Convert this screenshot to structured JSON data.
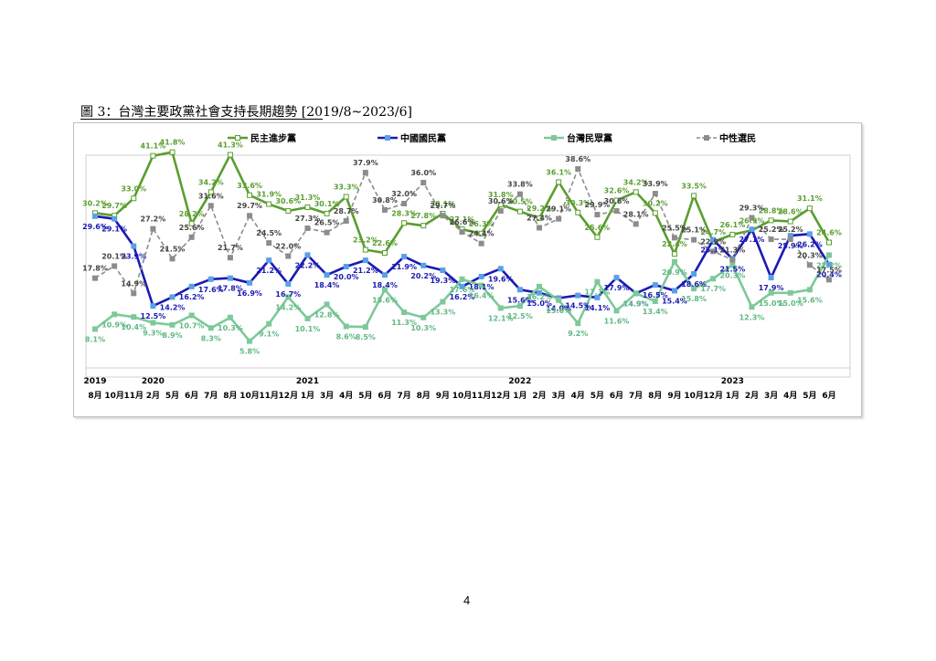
{
  "caption": "圖 3：台灣主要政黨社會支持長期趨勢 [2019/8~2023/6]",
  "page_number": "4",
  "chart_data": {
    "type": "line",
    "title": "",
    "xlabel": "",
    "ylabel": "",
    "ylim": [
      0,
      45
    ],
    "grid": false,
    "legend_placement": "top",
    "x": [
      "8月",
      "10月",
      "11月",
      "2月",
      "5月",
      "6月",
      "7月",
      "8月",
      "10月",
      "11月",
      "12月",
      "1月",
      "3月",
      "4月",
      "5月",
      "6月",
      "7月",
      "8月",
      "9月",
      "10月",
      "11月",
      "12月",
      "1月",
      "2月",
      "3月",
      "4月",
      "5月",
      "6月",
      "7月",
      "8月",
      "9月",
      "10月",
      "12月",
      "1月",
      "2月",
      "3月",
      "4月",
      "5月",
      "6月"
    ],
    "year_labels": [
      {
        "label": "2019",
        "index": 0
      },
      {
        "label": "2020",
        "index": 3
      },
      {
        "label": "2021",
        "index": 11
      },
      {
        "label": "2022",
        "index": 22
      },
      {
        "label": "2023",
        "index": 33
      }
    ],
    "series": [
      {
        "name": "民主進步黨",
        "color": "#5a9e2f",
        "marker": "square-hollow",
        "dash": "solid",
        "values": [
          30.2,
          29.7,
          33.0,
          41.1,
          41.8,
          28.2,
          34.2,
          41.3,
          33.6,
          31.9,
          30.6,
          31.3,
          30.1,
          33.3,
          23.2,
          22.6,
          28.3,
          27.8,
          30.1,
          27.1,
          26.3,
          31.8,
          30.5,
          29.2,
          36.1,
          30.3,
          25.6,
          32.6,
          34.2,
          30.2,
          22.4,
          33.5,
          24.7,
          26.1,
          26.9,
          28.8,
          28.6,
          31.1,
          24.6
        ]
      },
      {
        "name": "中國國民黨",
        "color": "#1a1ab3",
        "marker": "square-filled-lightblue",
        "dash": "solid",
        "values": [
          29.6,
          29.1,
          23.9,
          12.5,
          14.2,
          16.2,
          17.6,
          17.8,
          16.9,
          21.2,
          16.7,
          22.2,
          18.4,
          20.0,
          21.2,
          18.4,
          21.9,
          20.2,
          19.3,
          16.2,
          18.1,
          19.6,
          15.6,
          15.0,
          14.0,
          14.5,
          14.1,
          17.9,
          14.9,
          16.5,
          15.4,
          18.6,
          25.1,
          21.5,
          27.1,
          17.9,
          25.9,
          26.2,
          20.4
        ]
      },
      {
        "name": "台灣民眾黨",
        "color": "#7dc99a",
        "marker": "square-filled",
        "dash": "solid",
        "values": [
          8.1,
          10.9,
          10.4,
          9.3,
          8.9,
          10.7,
          8.3,
          10.3,
          5.8,
          9.1,
          14.2,
          10.1,
          12.8,
          8.6,
          8.5,
          15.6,
          11.3,
          10.3,
          13.3,
          17.6,
          16.4,
          12.1,
          12.5,
          16.2,
          13.6,
          9.2,
          17.1,
          11.6,
          14.9,
          13.4,
          20.9,
          15.8,
          17.7,
          20.3,
          12.3,
          15.0,
          15.0,
          15.6,
          22.2
        ]
      },
      {
        "name": "中性選民",
        "color": "#8c8c8c",
        "marker": "square-filled",
        "dash": "dashed",
        "values": [
          17.8,
          20.1,
          14.9,
          27.2,
          21.5,
          25.6,
          31.6,
          21.7,
          29.7,
          24.5,
          22.0,
          27.3,
          26.5,
          28.7,
          37.9,
          30.8,
          32.0,
          36.0,
          29.7,
          26.6,
          24.4,
          30.6,
          33.8,
          27.4,
          29.1,
          38.6,
          29.9,
          30.6,
          28.1,
          33.9,
          25.5,
          25.1,
          22.9,
          21.3,
          29.3,
          25.2,
          25.2,
          20.3,
          17.5
        ]
      }
    ]
  }
}
